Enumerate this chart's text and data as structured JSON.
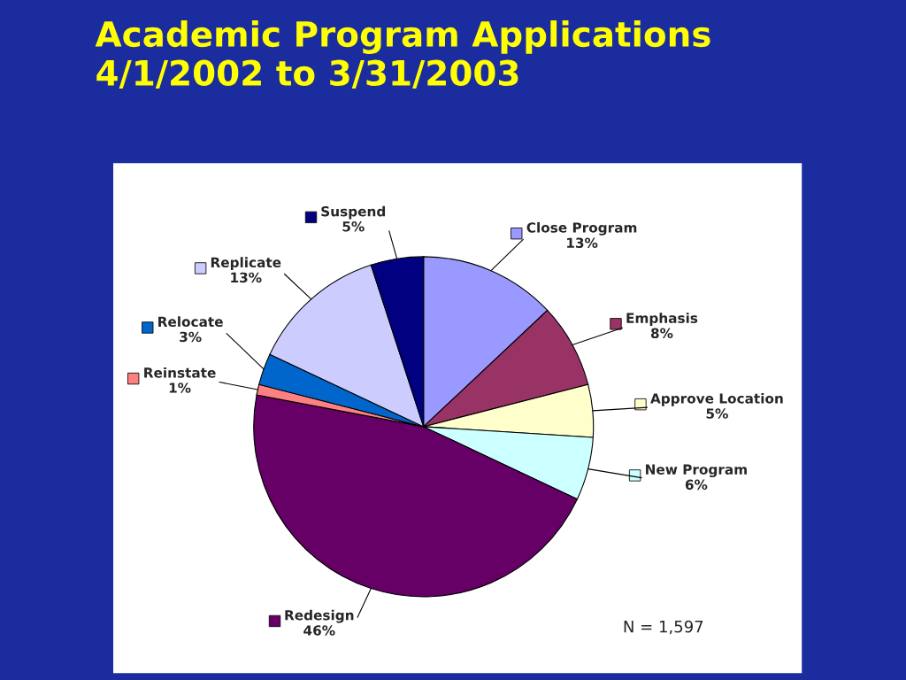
{
  "chart_data": {
    "type": "pie",
    "title": "Academic Program Applications\n4/1/2002 to 3/31/2003",
    "categories": [
      "Close Program",
      "Emphasis",
      "Approve Location",
      "New Program",
      "Redesign",
      "Reinstate",
      "Relocate",
      "Replicate",
      "Suspend"
    ],
    "values": [
      13,
      8,
      5,
      6,
      46,
      1,
      3,
      13,
      5
    ],
    "value_labels": [
      "13%",
      "8%",
      "5%",
      "6%",
      "46%",
      "1%",
      "3%",
      "13%",
      "5%"
    ],
    "colors": [
      "#9999ff",
      "#993366",
      "#ffffcc",
      "#ccffff",
      "#660066",
      "#ff8080",
      "#0066cc",
      "#ccccff",
      "#000080"
    ],
    "legend": "top right",
    "annotations": [
      "N = 1,597"
    ]
  }
}
